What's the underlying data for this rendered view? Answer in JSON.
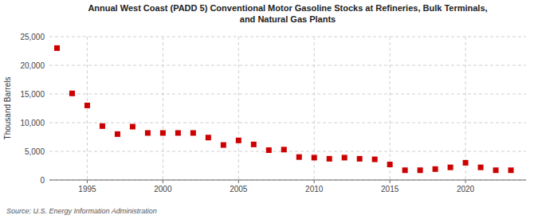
{
  "chart_data": {
    "type": "scatter",
    "title": "Annual West Coast (PADD 5) Conventional Motor Gasoline Stocks at Refineries, Bulk Terminals,\nand Natural Gas Plants",
    "ylabel": "Thousand Barrels",
    "source": "Source: U.S. Energy Information Administration",
    "x": [
      1993,
      1994,
      1995,
      1996,
      1997,
      1998,
      1999,
      2000,
      2001,
      2002,
      2003,
      2004,
      2005,
      2006,
      2007,
      2008,
      2009,
      2010,
      2011,
      2012,
      2013,
      2014,
      2015,
      2016,
      2017,
      2018,
      2019,
      2020,
      2021,
      2022,
      2023
    ],
    "values": [
      23000,
      15100,
      13000,
      9400,
      8000,
      9300,
      8200,
      8200,
      8200,
      8200,
      7400,
      6100,
      6900,
      6200,
      5200,
      5300,
      4000,
      3900,
      3700,
      3900,
      3700,
      3600,
      2700,
      1700,
      1700,
      1900,
      2200,
      3000,
      2200,
      1700,
      1700
    ],
    "color": "#cc0000",
    "marker": "square",
    "xlim": [
      1992.5,
      2024
    ],
    "xticks": [
      1995,
      2000,
      2005,
      2010,
      2015,
      2020
    ],
    "ylim": [
      0,
      25000
    ],
    "yticks": [
      {
        "value": 0,
        "label": "0"
      },
      {
        "value": 5000,
        "label": "5,000"
      },
      {
        "value": 10000,
        "label": "10,000"
      },
      {
        "value": 15000,
        "label": "15,000"
      },
      {
        "value": 20000,
        "label": "20,000"
      },
      {
        "value": 25000,
        "label": "25,000"
      }
    ],
    "grid": true
  }
}
